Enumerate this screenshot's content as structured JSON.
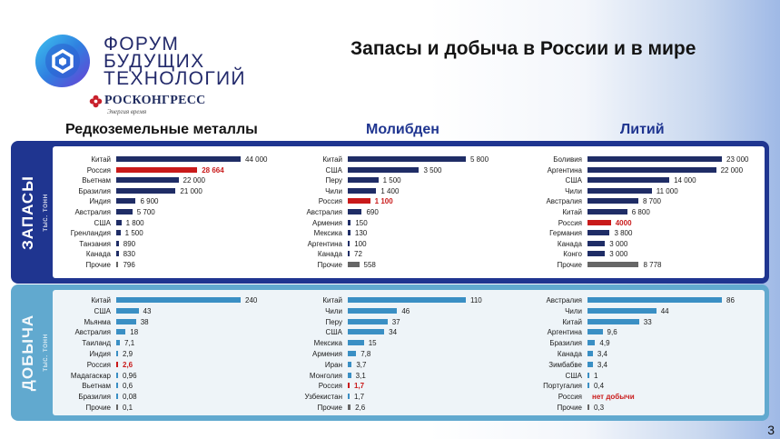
{
  "logo": {
    "lines": [
      "ФОРУМ",
      "БУДУЩИХ",
      "ТЕХНОЛОГИЙ"
    ],
    "org_name": "РОСКОНГРЕСС",
    "org_tagline": "Энергия время"
  },
  "title": "Запасы и добыча в России и в мире",
  "page_number": "3",
  "colors": {
    "reserves_bar": "#1f2d66",
    "reserves_panel": "#1f3590",
    "production_bar": "#3a8fc4",
    "production_panel": "#61a9cf",
    "russia": "#c91a1a",
    "other": "#666666"
  },
  "columns": [
    {
      "title": "Редкоземельные металлы"
    },
    {
      "title": "Молибден"
    },
    {
      "title": "Литий"
    }
  ],
  "reserves": {
    "label": "ЗАПАСЫ",
    "unit": "тыс. тонн",
    "charts": [
      {
        "type": "bar",
        "max": 44000,
        "rows": [
          {
            "label": "Китай",
            "value": 44000,
            "text": "44 000"
          },
          {
            "label": "Россия",
            "value": 28664,
            "text": "28 664",
            "highlight": "russia"
          },
          {
            "label": "Вьетнам",
            "value": 22000,
            "text": "22 000"
          },
          {
            "label": "Бразилия",
            "value": 21000,
            "text": "21 000"
          },
          {
            "label": "Индия",
            "value": 6900,
            "text": "6 900"
          },
          {
            "label": "Австралия",
            "value": 5700,
            "text": "5 700"
          },
          {
            "label": "США",
            "value": 1800,
            "text": "1 800"
          },
          {
            "label": "Гренландия",
            "value": 1500,
            "text": "1 500"
          },
          {
            "label": "Танзания",
            "value": 890,
            "text": "890"
          },
          {
            "label": "Канада",
            "value": 830,
            "text": "830"
          },
          {
            "label": "Прочие",
            "value": 796,
            "text": "796",
            "highlight": "other"
          }
        ]
      },
      {
        "type": "bar",
        "max": 5800,
        "rows": [
          {
            "label": "Китай",
            "value": 5800,
            "text": "5 800"
          },
          {
            "label": "США",
            "value": 3500,
            "text": "3 500"
          },
          {
            "label": "Перу",
            "value": 1500,
            "text": "1 500"
          },
          {
            "label": "Чили",
            "value": 1400,
            "text": "1 400"
          },
          {
            "label": "Россия",
            "value": 1100,
            "text": "1 100",
            "highlight": "russia"
          },
          {
            "label": "Австралия",
            "value": 690,
            "text": "690"
          },
          {
            "label": "Армения",
            "value": 150,
            "text": "150"
          },
          {
            "label": "Мексика",
            "value": 130,
            "text": "130"
          },
          {
            "label": "Аргентина",
            "value": 100,
            "text": "100"
          },
          {
            "label": "Канада",
            "value": 72,
            "text": "72"
          },
          {
            "label": "Прочие",
            "value": 558,
            "text": "558",
            "highlight": "other"
          }
        ]
      },
      {
        "type": "bar",
        "max": 23000,
        "rows": [
          {
            "label": "Боливия",
            "value": 23000,
            "text": "23 000"
          },
          {
            "label": "Аргентина",
            "value": 22000,
            "text": "22 000"
          },
          {
            "label": "США",
            "value": 14000,
            "text": "14 000"
          },
          {
            "label": "Чили",
            "value": 11000,
            "text": "11 000"
          },
          {
            "label": "Австралия",
            "value": 8700,
            "text": "8 700"
          },
          {
            "label": "Китай",
            "value": 6800,
            "text": "6 800"
          },
          {
            "label": "Россия",
            "value": 4000,
            "text": "4000",
            "highlight": "russia"
          },
          {
            "label": "Германия",
            "value": 3800,
            "text": "3 800"
          },
          {
            "label": "Канада",
            "value": 3000,
            "text": "3 000"
          },
          {
            "label": "Конго",
            "value": 3000,
            "text": "3 000"
          },
          {
            "label": "Прочие",
            "value": 8778,
            "text": "8 778",
            "highlight": "other"
          }
        ]
      }
    ]
  },
  "production": {
    "label": "ДОБЫЧА",
    "unit": "тыс. тонн",
    "charts": [
      {
        "type": "bar",
        "max": 240,
        "rows": [
          {
            "label": "Китай",
            "value": 240,
            "text": "240"
          },
          {
            "label": "США",
            "value": 43,
            "text": "43"
          },
          {
            "label": "Мьянма",
            "value": 38,
            "text": "38"
          },
          {
            "label": "Австралия",
            "value": 18,
            "text": "18"
          },
          {
            "label": "Таиланд",
            "value": 7.1,
            "text": "7,1"
          },
          {
            "label": "Индия",
            "value": 2.9,
            "text": "2,9"
          },
          {
            "label": "Россия",
            "value": 2.6,
            "text": "2,6",
            "highlight": "russia"
          },
          {
            "label": "Мадагаскар",
            "value": 0.96,
            "text": "0,96"
          },
          {
            "label": "Вьетнам",
            "value": 0.6,
            "text": "0,6"
          },
          {
            "label": "Бразилия",
            "value": 0.08,
            "text": "0,08"
          },
          {
            "label": "Прочие",
            "value": 0.1,
            "text": "0,1",
            "highlight": "other"
          }
        ]
      },
      {
        "type": "bar",
        "max": 110,
        "rows": [
          {
            "label": "Китай",
            "value": 110,
            "text": "110"
          },
          {
            "label": "Чили",
            "value": 46,
            "text": "46"
          },
          {
            "label": "Перу",
            "value": 37,
            "text": "37"
          },
          {
            "label": "США",
            "value": 34,
            "text": "34"
          },
          {
            "label": "Мексика",
            "value": 15,
            "text": "15"
          },
          {
            "label": "Армения",
            "value": 7.8,
            "text": "7,8"
          },
          {
            "label": "Иран",
            "value": 3.7,
            "text": "3,7"
          },
          {
            "label": "Монголия",
            "value": 3.1,
            "text": "3,1"
          },
          {
            "label": "Россия",
            "value": 1.7,
            "text": "1,7",
            "highlight": "russia"
          },
          {
            "label": "Узбекистан",
            "value": 1.7,
            "text": "1,7"
          },
          {
            "label": "Прочие",
            "value": 2.6,
            "text": "2,6",
            "highlight": "other"
          }
        ]
      },
      {
        "type": "bar",
        "max": 86,
        "rows": [
          {
            "label": "Австралия",
            "value": 86,
            "text": "86"
          },
          {
            "label": "Чили",
            "value": 44,
            "text": "44"
          },
          {
            "label": "Китай",
            "value": 33,
            "text": "33"
          },
          {
            "label": "Аргентина",
            "value": 9.6,
            "text": "9,6"
          },
          {
            "label": "Бразилия",
            "value": 4.9,
            "text": "4,9"
          },
          {
            "label": "Канада",
            "value": 3.4,
            "text": "3,4"
          },
          {
            "label": "Зимбабве",
            "value": 3.4,
            "text": "3,4"
          },
          {
            "label": "США",
            "value": 1,
            "text": "1"
          },
          {
            "label": "Португалия",
            "value": 0.4,
            "text": "0,4"
          },
          {
            "label": "Россия",
            "value": 0,
            "text": "нет добычи",
            "highlight": "russia"
          },
          {
            "label": "Прочие",
            "value": 0.3,
            "text": "0,3",
            "highlight": "other"
          }
        ]
      }
    ]
  }
}
